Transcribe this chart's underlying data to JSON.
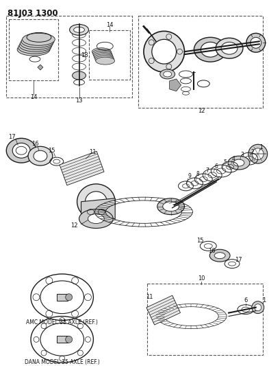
{
  "title": "81J03 1300",
  "bg_color": "#ffffff",
  "line_color": "#1a1a1a",
  "text_color": "#111111",
  "fig_width": 3.93,
  "fig_height": 5.33,
  "dpi": 100
}
